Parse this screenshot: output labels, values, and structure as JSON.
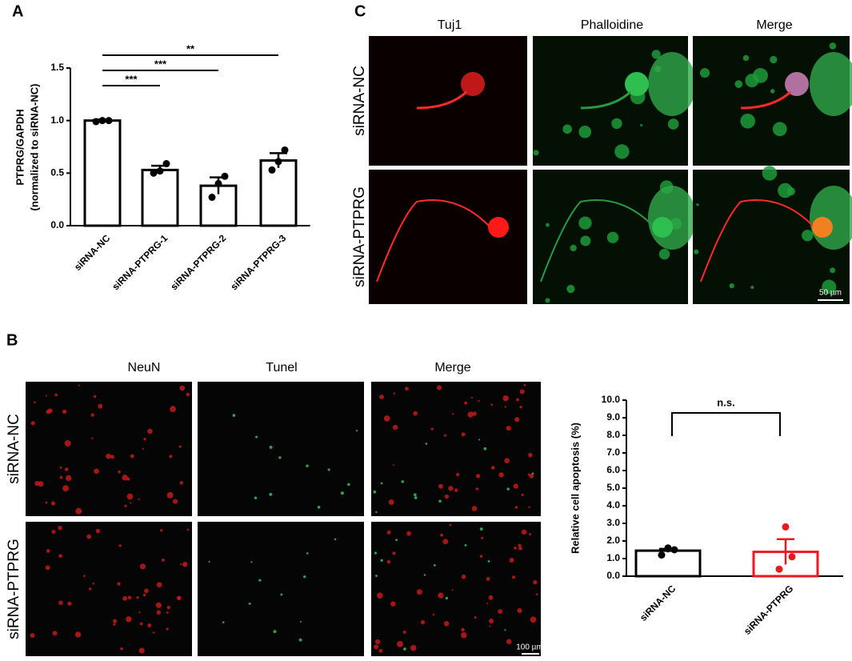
{
  "chart_data": [
    {
      "type": "bar",
      "ylabel": [
        "PTPRG/GAPDH",
        "(normalized to siRNA-NC)"
      ],
      "categories": [
        "siRNA-NC",
        "siRNA-PTPRG-1",
        "siRNA-PTPRG-2",
        "siRNA-PTPRG-3"
      ],
      "values": [
        1.0,
        0.53,
        0.38,
        0.62
      ],
      "errors": [
        0.01,
        0.04,
        0.08,
        0.07
      ],
      "points": [
        [
          0.99,
          1.0,
          1.0
        ],
        [
          0.5,
          0.52,
          0.59
        ],
        [
          0.27,
          0.4,
          0.47
        ],
        [
          0.53,
          0.61,
          0.72
        ]
      ],
      "colors": [
        "#000000",
        "#000000",
        "#000000",
        "#000000"
      ],
      "bar_fill": "#ffffff",
      "significance": [
        null,
        "***",
        "***",
        "**"
      ],
      "ylim": [
        0,
        1.5
      ],
      "yticks": [
        {
          "value": 0,
          "label": "0.0"
        },
        0.5,
        {
          "value": 1,
          "label": "1.0"
        },
        1.5
      ]
    },
    {
      "type": "bar",
      "ylabel": "Relative cell apoptosis (%)",
      "categories": [
        "siRNA-NC",
        "siRNA-PTPRG"
      ],
      "values": [
        1.45,
        1.38
      ],
      "errors": [
        0.1,
        0.72
      ],
      "points": [
        [
          1.2,
          1.6,
          1.5
        ],
        [
          0.4,
          2.8,
          1.1
        ]
      ],
      "colors": [
        "#000000",
        "#e8191f"
      ],
      "bar_fill": "#ffffff",
      "significance": [
        null,
        "n.s."
      ],
      "ylim": [
        0,
        10
      ],
      "yticks": [
        {
          "value": 0,
          "label": "0.0"
        },
        {
          "value": 1,
          "label": "1.0"
        },
        {
          "value": 2,
          "label": "2.0"
        },
        {
          "value": 3,
          "label": "3.0"
        },
        {
          "value": 4,
          "label": "4.0"
        },
        {
          "value": 5,
          "label": "5.0"
        },
        {
          "value": 6,
          "label": "6.0"
        },
        {
          "value": 7,
          "label": "7.0"
        },
        {
          "value": 8,
          "label": "8.0"
        },
        {
          "value": 9,
          "label": "9.0"
        },
        {
          "value": 10,
          "label": "10.0"
        }
      ]
    }
  ],
  "figure": {
    "panel_labels": [
      "A",
      "B",
      "C"
    ],
    "panel_c": {
      "columns": [
        "Tuj1",
        "Phalloidine",
        "Merge"
      ],
      "rows": [
        "siRNA-NC",
        "siRNA-PTPRG"
      ],
      "channel_label": "Tuj1",
      "scale_bar": "50 µm"
    },
    "panel_b": {
      "columns": [
        "NeuN",
        "Tunel",
        "Merge"
      ],
      "rows": [
        "siRNA-NC",
        "siRNA-PTPRG"
      ],
      "scale_bar": "100 µm"
    }
  }
}
